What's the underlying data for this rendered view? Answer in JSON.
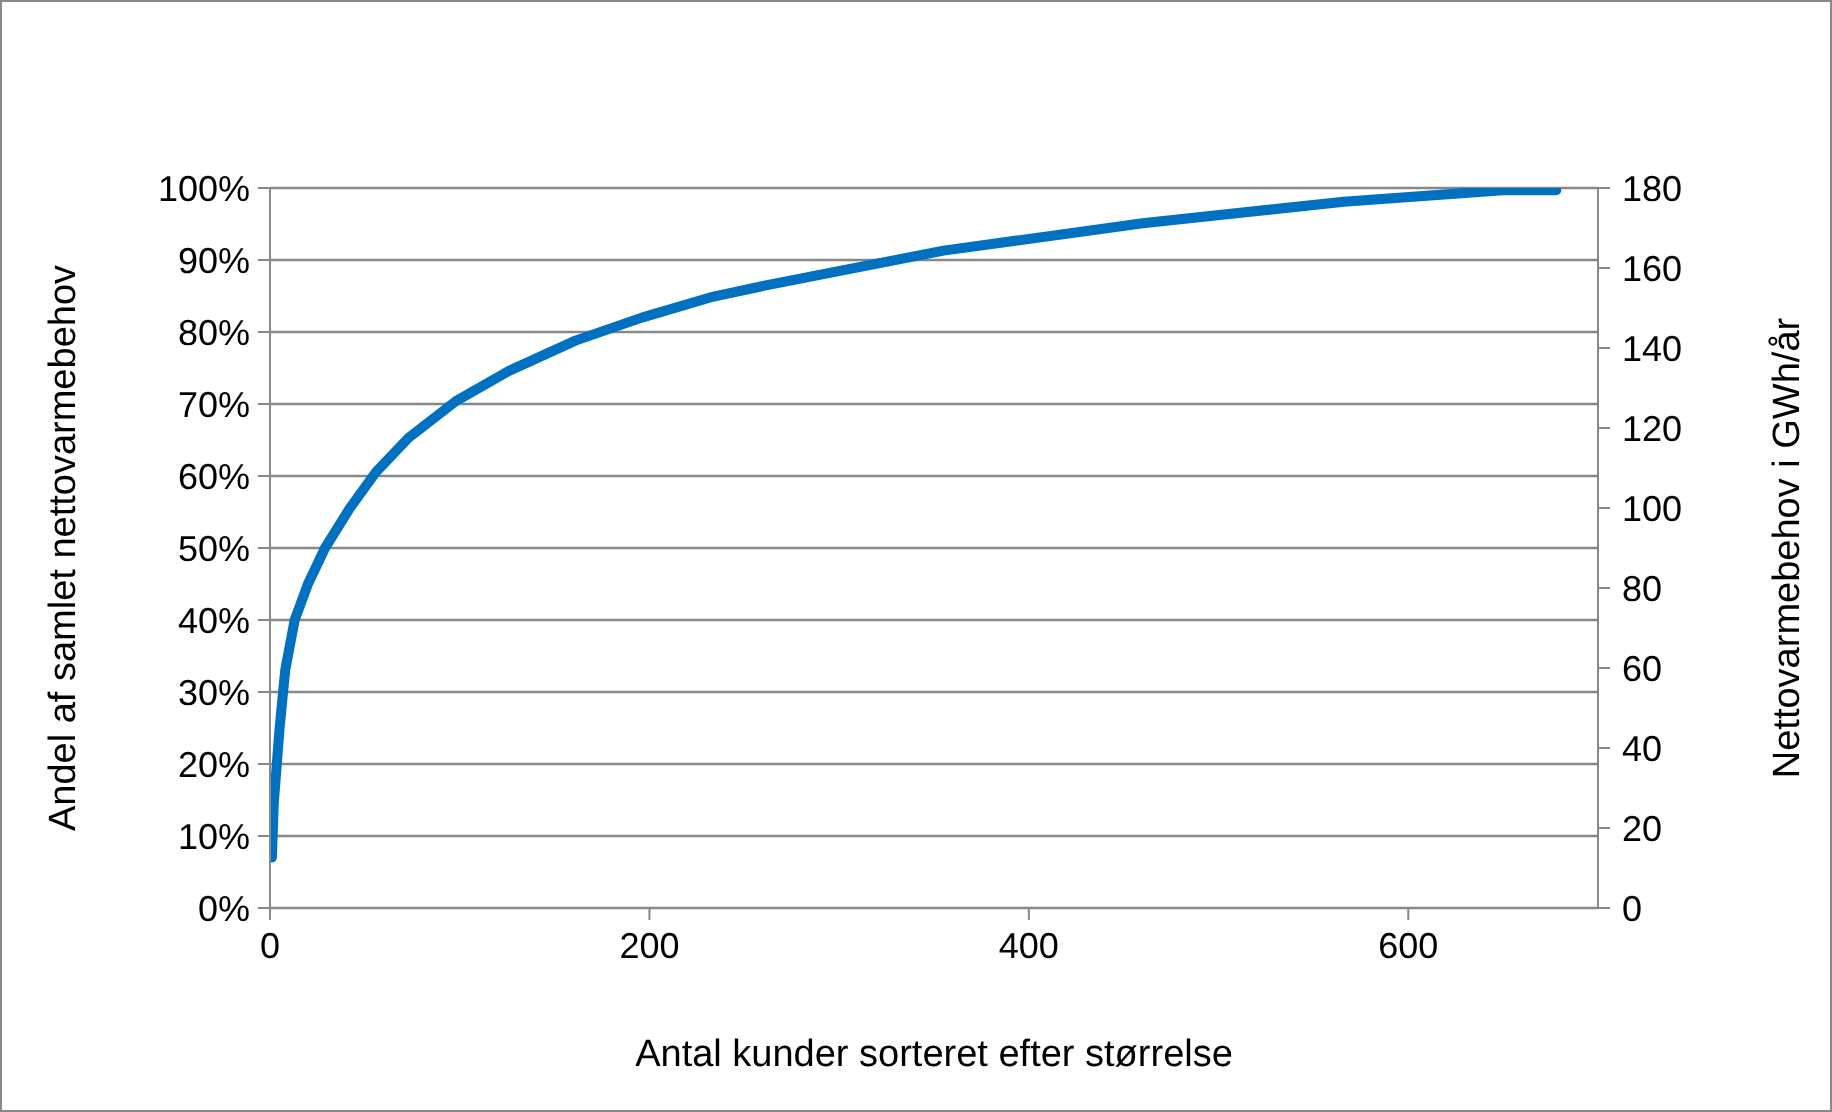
{
  "chart_data": {
    "type": "line",
    "xlabel": "Antal kunder sorteret efter størrelse",
    "ylabel": "Andel af samlet nettovarmebehov",
    "y2label": "Nettovarmebehov i GWh/år",
    "x": [
      1,
      2,
      5,
      8,
      13,
      20,
      29,
      42,
      56,
      73,
      98,
      126,
      161,
      196,
      232,
      260,
      355,
      460,
      566,
      650,
      678
    ],
    "series": [
      {
        "color": "#0070c0",
        "values": [
          7,
          14.6,
          24.8,
          33,
          40,
          45,
          50,
          55.5,
          60.6,
          65.3,
          70.4,
          74.6,
          78.8,
          82,
          84.8,
          86.4,
          91.3,
          95.1,
          98.1,
          99.7,
          99.7
        ]
      }
    ],
    "xlim": [
      0,
      700
    ],
    "xticks": [
      0,
      200,
      400,
      600
    ],
    "ylim": [
      0,
      100
    ],
    "yticks": [
      {
        "value": 0,
        "label": "0%"
      },
      {
        "value": 10,
        "label": "10%"
      },
      {
        "value": 20,
        "label": "20%"
      },
      {
        "value": 30,
        "label": "30%"
      },
      {
        "value": 40,
        "label": "40%"
      },
      {
        "value": 50,
        "label": "50%"
      },
      {
        "value": 60,
        "label": "60%"
      },
      {
        "value": 70,
        "label": "70%"
      },
      {
        "value": 80,
        "label": "80%"
      },
      {
        "value": 90,
        "label": "90%"
      },
      {
        "value": 100,
        "label": "100%"
      }
    ],
    "y2lim": [
      0,
      180
    ],
    "y2ticks": [
      0,
      20,
      40,
      60,
      80,
      100,
      120,
      140,
      160,
      180
    ],
    "grid": "y",
    "marker": "none",
    "line_style": "solid"
  }
}
